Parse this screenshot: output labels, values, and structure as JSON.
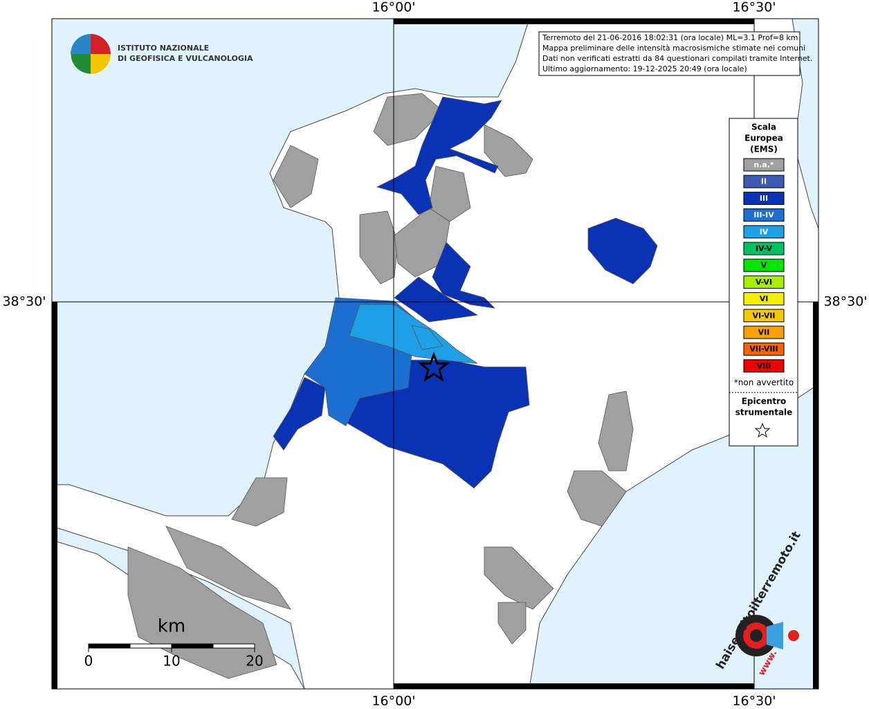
{
  "coordinates": {
    "top": [
      "16°00'",
      "16°30'"
    ],
    "bottom": [
      "16°00'",
      "16°30'"
    ],
    "left": "38°30'",
    "right": "38°30'"
  },
  "logo": {
    "line1": "ISTITUTO NAZIONALE",
    "line2": "DI GEOFISICA E VULCANOLOGIA"
  },
  "info": [
    "Terremoto del 21-06-2016 18:02:31 (ora locale) ML=3.1 Prof=8 km",
    "Mappa preliminare delle intensità macrosismiche stimate nei comuni",
    "Dati non verificati estratti da 84 questionari compilati tramite Internet.",
    "Ultimo aggiornamento: 19-12-2025 20:49 (ora locale)"
  ],
  "legend": {
    "title": [
      "Scala",
      "Europea",
      "(EMS)"
    ],
    "items": [
      {
        "label": "n.a.*",
        "color": "#a0a0a0",
        "text_color": "#ffffff"
      },
      {
        "label": "II",
        "color": "#3c5cb4",
        "text_color": "#ffffff"
      },
      {
        "label": "III",
        "color": "#0a32b4",
        "text_color": "#ffffff"
      },
      {
        "label": "III-IV",
        "color": "#1a6fd0",
        "text_color": "#ffffff"
      },
      {
        "label": "IV",
        "color": "#1ea0e6",
        "text_color": "#ffffff"
      },
      {
        "label": "IV-V",
        "color": "#00c060",
        "text_color": "#000000"
      },
      {
        "label": "V",
        "color": "#00e600",
        "text_color": "#000000"
      },
      {
        "label": "V-VI",
        "color": "#a8ee00",
        "text_color": "#000000"
      },
      {
        "label": "VI",
        "color": "#f4f000",
        "text_color": "#000000"
      },
      {
        "label": "VI-VII",
        "color": "#f8c800",
        "text_color": "#000000"
      },
      {
        "label": "VII",
        "color": "#f8a000",
        "text_color": "#000000"
      },
      {
        "label": "VII-VIII",
        "color": "#f86400",
        "text_color": "#000000"
      },
      {
        "label": "VIII",
        "color": "#f00000",
        "text_color": "#000000"
      }
    ],
    "note": "*non avvertito",
    "epicenter": [
      "Epicentro",
      "strumentale"
    ]
  },
  "scale_bar": {
    "unit": "km",
    "ticks": [
      0,
      10,
      20
    ],
    "range": [
      0,
      20
    ]
  },
  "site_logo": {
    "prefix": "www.",
    "name": "haisentitoilterremoto.it"
  }
}
